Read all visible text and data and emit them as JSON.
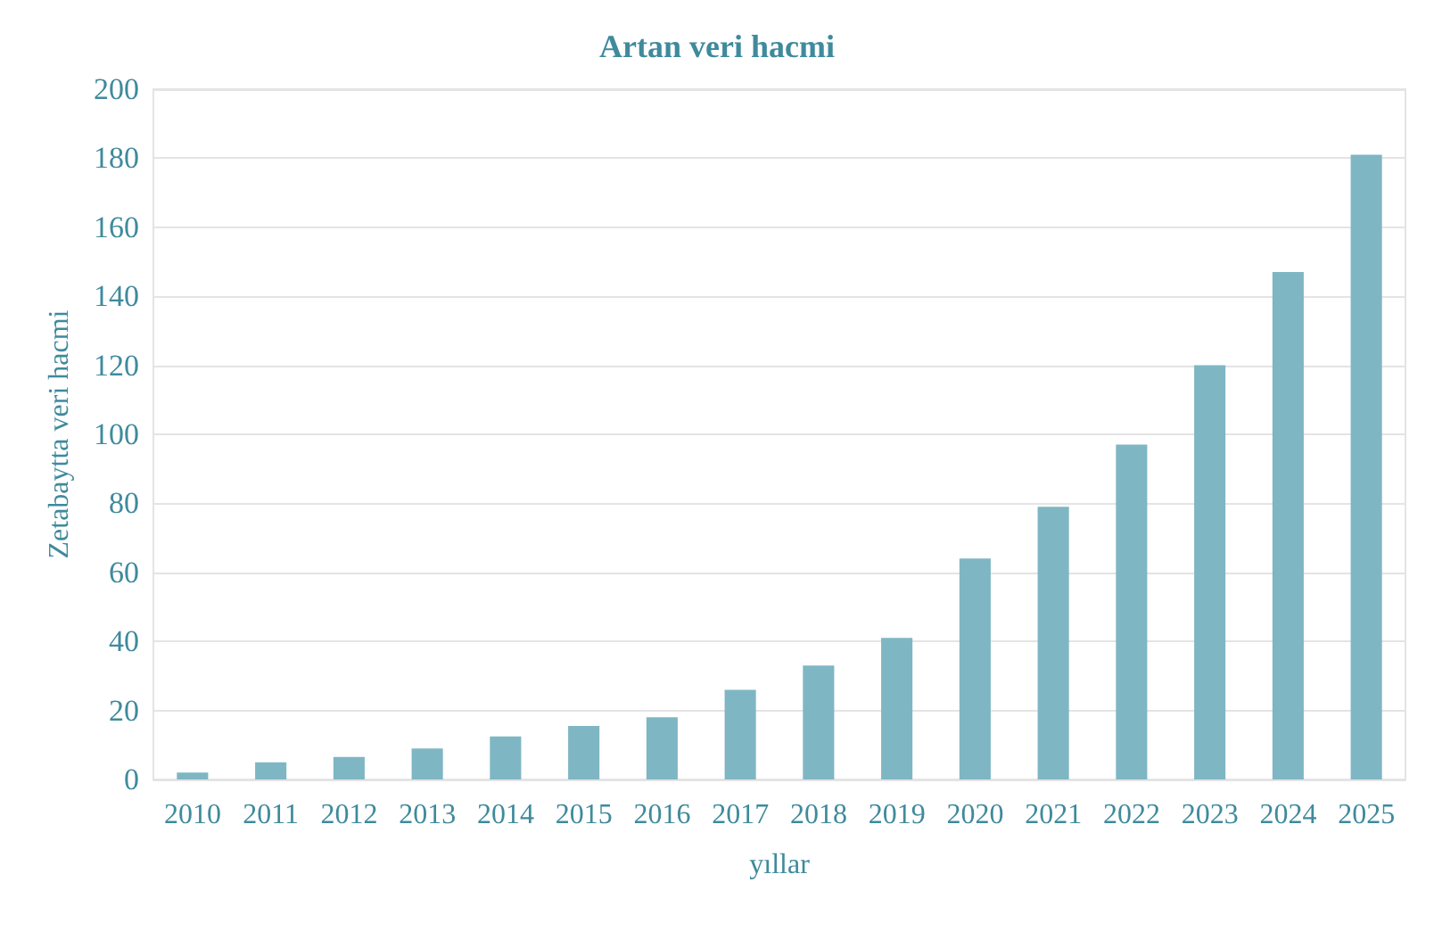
{
  "chart_data": {
    "type": "bar",
    "title": "Artan veri hacmi",
    "xlabel": "yıllar",
    "ylabel": "Zetabaytta veri hacmi",
    "categories": [
      "2010",
      "2011",
      "2012",
      "2013",
      "2014",
      "2015",
      "2016",
      "2017",
      "2018",
      "2019",
      "2020",
      "2021",
      "2022",
      "2023",
      "2024",
      "2025"
    ],
    "values": [
      2,
      5,
      6.5,
      9,
      12.5,
      15.5,
      18,
      26,
      33,
      41,
      64,
      79,
      97,
      120,
      147,
      181
    ],
    "color": "#7fb6c4",
    "ylim": [
      0,
      200
    ],
    "yticks": [
      0,
      20,
      40,
      60,
      80,
      100,
      120,
      140,
      160,
      180,
      200
    ],
    "grid": "y"
  }
}
